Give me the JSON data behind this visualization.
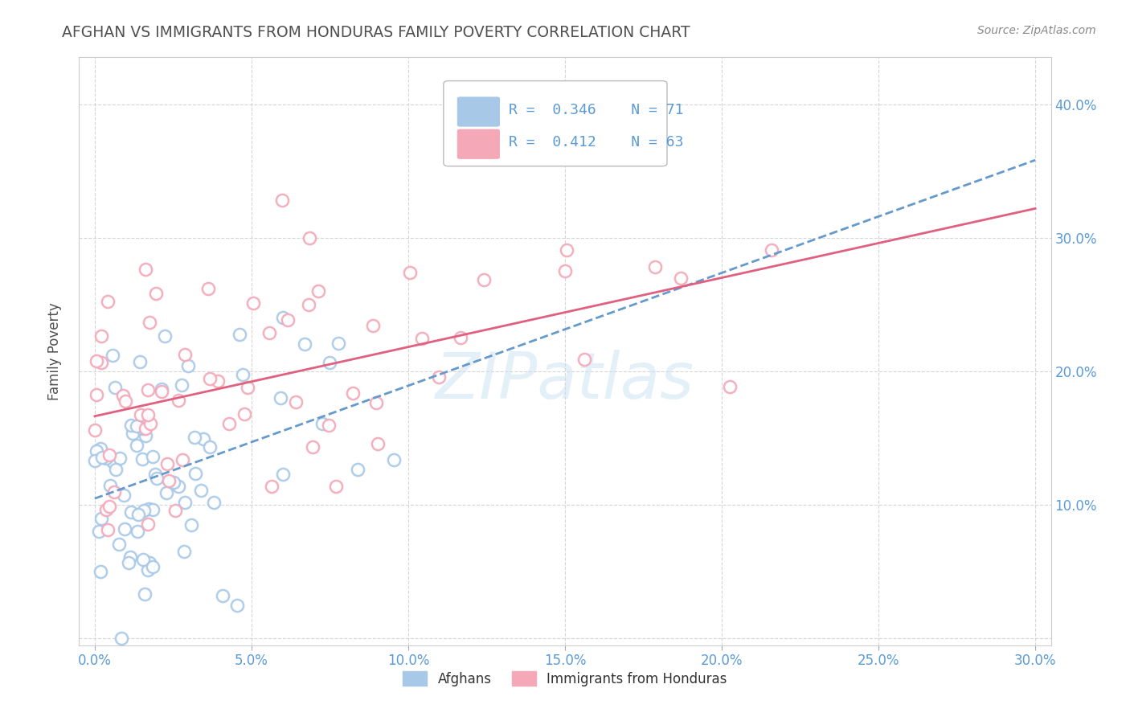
{
  "title": "AFGHAN VS IMMIGRANTS FROM HONDURAS FAMILY POVERTY CORRELATION CHART",
  "source": "Source: ZipAtlas.com",
  "ylabel": "Family Poverty",
  "xlim": [
    -0.005,
    0.305
  ],
  "ylim": [
    -0.005,
    0.435
  ],
  "xticks": [
    0.0,
    0.05,
    0.1,
    0.15,
    0.2,
    0.25,
    0.3
  ],
  "yticks": [
    0.0,
    0.1,
    0.2,
    0.3,
    0.4
  ],
  "xtick_labels": [
    "0.0%",
    "5.0%",
    "10.0%",
    "15.0%",
    "20.0%",
    "25.0%",
    "30.0%"
  ],
  "ytick_labels_right": [
    "",
    "10.0%",
    "20.0%",
    "30.0%",
    "40.0%"
  ],
  "afghan_color": "#a8c8e8",
  "honduras_color": "#f4a8b8",
  "afghan_line_color": "#6699cc",
  "honduras_line_color": "#e06080",
  "axis_color": "#5b9bd5",
  "title_color": "#505050",
  "background_color": "#ffffff",
  "grid_color": "#cccccc",
  "source_color": "#888888",
  "legend_R1": "0.346",
  "legend_N1": "71",
  "legend_R2": "0.412",
  "legend_N2": "63"
}
